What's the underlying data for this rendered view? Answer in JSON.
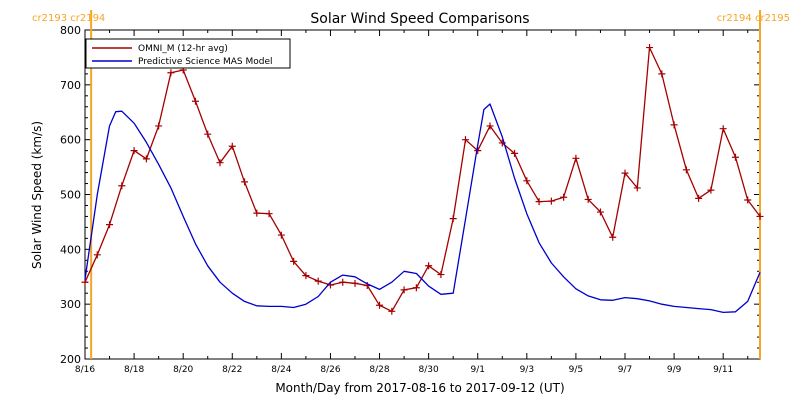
{
  "chart_data": {
    "type": "line",
    "title": "Solar Wind Speed Comparisons",
    "xlabel": "Month/Day from 2017-08-16 to 2017-09-12 (UT)",
    "ylabel": "Solar Wind Speed (km/s)",
    "xlim": [
      "2017-08-16T00:00",
      "2017-09-12T12:00"
    ],
    "ylim": [
      200,
      800
    ],
    "y_ticks": [
      200,
      300,
      400,
      500,
      600,
      700,
      800
    ],
    "x_ticks": [
      {
        "label": "8/16",
        "date": "2017-08-16"
      },
      {
        "label": "8/18",
        "date": "2017-08-18"
      },
      {
        "label": "8/20",
        "date": "2017-08-20"
      },
      {
        "label": "8/22",
        "date": "2017-08-22"
      },
      {
        "label": "8/24",
        "date": "2017-08-24"
      },
      {
        "label": "8/26",
        "date": "2017-08-26"
      },
      {
        "label": "8/28",
        "date": "2017-08-28"
      },
      {
        "label": "8/30",
        "date": "2017-08-30"
      },
      {
        "label": "9/1",
        "date": "2017-09-01"
      },
      {
        "label": "9/3",
        "date": "2017-09-03"
      },
      {
        "label": "9/5",
        "date": "2017-09-05"
      },
      {
        "label": "9/7",
        "date": "2017-09-07"
      },
      {
        "label": "9/9",
        "date": "2017-09-09"
      },
      {
        "label": "9/11",
        "date": "2017-09-11"
      }
    ],
    "carrington_markers": [
      {
        "label": "cr2193 cr2194",
        "date": "2017-08-16T06:00",
        "color": "#f5a623"
      },
      {
        "label": "cr2194 cr2195",
        "date": "2017-09-12T12:00",
        "color": "#f5a623"
      }
    ],
    "legend_position": "top-left",
    "series": [
      {
        "name": "OMNI_M (12-hr avg)",
        "color": "#a50000",
        "marker": "plus",
        "points": [
          [
            "2017-08-16T00:00",
            340
          ],
          [
            "2017-08-16T12:00",
            390
          ],
          [
            "2017-08-17T00:00",
            445
          ],
          [
            "2017-08-17T12:00",
            516
          ],
          [
            "2017-08-18T00:00",
            580
          ],
          [
            "2017-08-18T12:00",
            565
          ],
          [
            "2017-08-19T00:00",
            625
          ],
          [
            "2017-08-19T12:00",
            722
          ],
          [
            "2017-08-20T00:00",
            727
          ],
          [
            "2017-08-20T12:00",
            670
          ],
          [
            "2017-08-21T00:00",
            610
          ],
          [
            "2017-08-21T12:00",
            558
          ],
          [
            "2017-08-22T00:00",
            588
          ],
          [
            "2017-08-22T12:00",
            523
          ],
          [
            "2017-08-23T00:00",
            466
          ],
          [
            "2017-08-23T12:00",
            465
          ],
          [
            "2017-08-24T00:00",
            426
          ],
          [
            "2017-08-24T12:00",
            378
          ],
          [
            "2017-08-25T00:00",
            352
          ],
          [
            "2017-08-25T12:00",
            342
          ],
          [
            "2017-08-26T00:00",
            335
          ],
          [
            "2017-08-26T12:00",
            340
          ],
          [
            "2017-08-27T00:00",
            338
          ],
          [
            "2017-08-27T12:00",
            334
          ],
          [
            "2017-08-28T00:00",
            298
          ],
          [
            "2017-08-28T12:00",
            287
          ],
          [
            "2017-08-29T00:00",
            326
          ],
          [
            "2017-08-29T12:00",
            330
          ],
          [
            "2017-08-30T00:00",
            370
          ],
          [
            "2017-08-30T12:00",
            354
          ],
          [
            "2017-08-31T00:00",
            456
          ],
          [
            "2017-08-31T12:00",
            600
          ],
          [
            "2017-09-01T00:00",
            580
          ],
          [
            "2017-09-01T12:00",
            625
          ],
          [
            "2017-09-02T00:00",
            594
          ],
          [
            "2017-09-02T12:00",
            575
          ],
          [
            "2017-09-03T00:00",
            525
          ],
          [
            "2017-09-03T12:00",
            487
          ],
          [
            "2017-09-04T00:00",
            488
          ],
          [
            "2017-09-04T12:00",
            495
          ],
          [
            "2017-09-05T00:00",
            566
          ],
          [
            "2017-09-05T12:00",
            491
          ],
          [
            "2017-09-06T00:00",
            468
          ],
          [
            "2017-09-06T12:00",
            422
          ],
          [
            "2017-09-07T00:00",
            539
          ],
          [
            "2017-09-07T12:00",
            512
          ],
          [
            "2017-09-08T00:00",
            768
          ],
          [
            "2017-09-08T12:00",
            720
          ],
          [
            "2017-09-09T00:00",
            627
          ],
          [
            "2017-09-09T12:00",
            545
          ],
          [
            "2017-09-10T00:00",
            493
          ],
          [
            "2017-09-10T12:00",
            508
          ],
          [
            "2017-09-11T00:00",
            620
          ],
          [
            "2017-09-11T12:00",
            568
          ],
          [
            "2017-09-12T00:00",
            490
          ],
          [
            "2017-09-12T12:00",
            460
          ]
        ]
      },
      {
        "name": "Predictive Science MAS Model",
        "color": "#0000cc",
        "marker": "none",
        "points": [
          [
            "2017-08-16T00:00",
            345
          ],
          [
            "2017-08-16T12:00",
            500
          ],
          [
            "2017-08-17T00:00",
            625
          ],
          [
            "2017-08-17T06:00",
            651
          ],
          [
            "2017-08-17T12:00",
            652
          ],
          [
            "2017-08-18T00:00",
            630
          ],
          [
            "2017-08-18T12:00",
            595
          ],
          [
            "2017-08-19T00:00",
            555
          ],
          [
            "2017-08-19T12:00",
            512
          ],
          [
            "2017-08-20T00:00",
            460
          ],
          [
            "2017-08-20T12:00",
            410
          ],
          [
            "2017-08-21T00:00",
            370
          ],
          [
            "2017-08-21T12:00",
            340
          ],
          [
            "2017-08-22T00:00",
            320
          ],
          [
            "2017-08-22T12:00",
            305
          ],
          [
            "2017-08-23T00:00",
            297
          ],
          [
            "2017-08-23T12:00",
            296
          ],
          [
            "2017-08-24T00:00",
            296
          ],
          [
            "2017-08-24T12:00",
            294
          ],
          [
            "2017-08-25T00:00",
            300
          ],
          [
            "2017-08-25T12:00",
            314
          ],
          [
            "2017-08-26T00:00",
            340
          ],
          [
            "2017-08-26T12:00",
            353
          ],
          [
            "2017-08-27T00:00",
            350
          ],
          [
            "2017-08-27T12:00",
            337
          ],
          [
            "2017-08-28T00:00",
            327
          ],
          [
            "2017-08-28T12:00",
            340
          ],
          [
            "2017-08-29T00:00",
            360
          ],
          [
            "2017-08-29T12:00",
            356
          ],
          [
            "2017-08-30T00:00",
            333
          ],
          [
            "2017-08-30T12:00",
            318
          ],
          [
            "2017-08-31T00:00",
            320
          ],
          [
            "2017-08-31T12:00",
            455
          ],
          [
            "2017-09-01T00:00",
            590
          ],
          [
            "2017-09-01T06:00",
            655
          ],
          [
            "2017-09-01T12:00",
            665
          ],
          [
            "2017-09-02T00:00",
            605
          ],
          [
            "2017-09-02T12:00",
            530
          ],
          [
            "2017-09-03T00:00",
            465
          ],
          [
            "2017-09-03T12:00",
            412
          ],
          [
            "2017-09-04T00:00",
            375
          ],
          [
            "2017-09-04T12:00",
            350
          ],
          [
            "2017-09-05T00:00",
            328
          ],
          [
            "2017-09-05T12:00",
            315
          ],
          [
            "2017-09-06T00:00",
            308
          ],
          [
            "2017-09-06T12:00",
            307
          ],
          [
            "2017-09-07T00:00",
            312
          ],
          [
            "2017-09-07T12:00",
            310
          ],
          [
            "2017-09-08T00:00",
            306
          ],
          [
            "2017-09-08T12:00",
            300
          ],
          [
            "2017-09-09T00:00",
            296
          ],
          [
            "2017-09-09T12:00",
            294
          ],
          [
            "2017-09-10T00:00",
            292
          ],
          [
            "2017-09-10T12:00",
            290
          ],
          [
            "2017-09-11T00:00",
            285
          ],
          [
            "2017-09-11T12:00",
            286
          ],
          [
            "2017-09-12T00:00",
            305
          ],
          [
            "2017-09-12T12:00",
            358
          ]
        ]
      }
    ]
  }
}
